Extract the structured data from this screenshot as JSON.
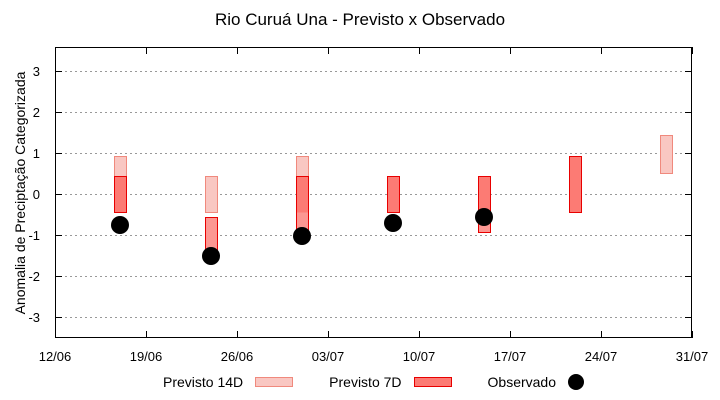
{
  "chart_data": {
    "type": "bar",
    "title": "Rio Curuá Una - Previsto x Observado",
    "ylabel": "Anomalia de Preciptação Categorizada",
    "xlabel": "",
    "ylim": [
      -3.55,
      3.6
    ],
    "y_ticks": [
      3,
      2,
      1,
      0,
      -1,
      -2,
      -3
    ],
    "x_ticks": [
      {
        "label": "12/06",
        "day": 0
      },
      {
        "label": "19/06",
        "day": 7
      },
      {
        "label": "26/06",
        "day": 14
      },
      {
        "label": "03/07",
        "day": 21
      },
      {
        "label": "10/07",
        "day": 28
      },
      {
        "label": "17/07",
        "day": 35
      },
      {
        "label": "24/07",
        "day": 42
      },
      {
        "label": "31/07",
        "day": 49
      }
    ],
    "grid": "dotted",
    "legend_position": "below",
    "series": [
      {
        "name": "Previsto 14D",
        "type": "range-box"
      },
      {
        "name": "Previsto 7D",
        "type": "range-box"
      },
      {
        "name": "Observado",
        "type": "scatter"
      }
    ],
    "groups": [
      {
        "date": "17/06",
        "day": 5,
        "previsto_14d": [
          -0.45,
          0.95
        ],
        "previsto_7d": [
          -0.45,
          0.45
        ],
        "observado": -0.75
      },
      {
        "date": "24/06",
        "day": 12,
        "previsto_14d": [
          -0.45,
          0.45
        ],
        "previsto_7d": [
          -1.45,
          -0.55
        ],
        "observado": -1.5
      },
      {
        "date": "01/07",
        "day": 19,
        "previsto_14d": [
          -0.45,
          0.95
        ],
        "previsto_7d": [
          -0.95,
          0.45
        ],
        "observado": -1.0
      },
      {
        "date": "08/07",
        "day": 26,
        "previsto_14d": [
          -0.45,
          0.45
        ],
        "previsto_7d": [
          -0.45,
          0.45
        ],
        "observado": -0.7
      },
      {
        "date": "15/07",
        "day": 33,
        "previsto_14d": [
          -0.45,
          0.45
        ],
        "previsto_7d": [
          -0.95,
          0.45
        ],
        "observado": -0.55
      },
      {
        "date": "22/07",
        "day": 40,
        "previsto_14d": [
          -0.45,
          0.95
        ],
        "previsto_7d": [
          -0.45,
          0.95
        ],
        "observado": null
      },
      {
        "date": "29/07",
        "day": 47,
        "previsto_14d": [
          0.5,
          1.45
        ],
        "previsto_7d": null,
        "observado": null
      }
    ],
    "legend": [
      {
        "label": "Previsto 14D",
        "swatch": "box-light"
      },
      {
        "label": "Previsto 7D",
        "swatch": "box-dark"
      },
      {
        "label": "Observado",
        "swatch": "dot"
      }
    ],
    "colors": {
      "p14_fill": "#f9c7c2",
      "p14_border": "#f0897d",
      "p7_fill_only": "#fc9792",
      "p7_fill_overlap": "#fc7b74",
      "p7_border": "#e80000",
      "dot": "#000000",
      "grid": "#999999",
      "frame": "#000000"
    }
  }
}
